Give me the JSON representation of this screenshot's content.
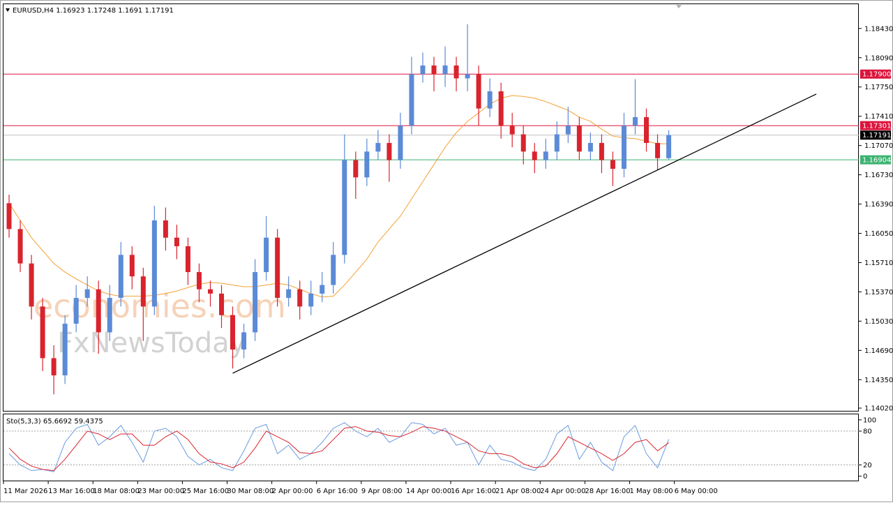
{
  "chart_data": {
    "type": "candlestick",
    "title": "EURUSD,H4",
    "xlim": [
      0,
      76.5
    ],
    "ylim": [
      1.1398,
      1.1872
    ],
    "yticks": [
      {
        "value": 1.1843,
        "label": "1.18430"
      },
      {
        "value": 1.1809,
        "label": "1.18090"
      },
      {
        "value": 1.1775,
        "label": "1.17750"
      },
      {
        "value": 1.1741,
        "label": "1.17410"
      },
      {
        "value": 1.1707,
        "label": "1.17070"
      },
      {
        "value": 1.1673,
        "label": "1.16730"
      },
      {
        "value": 1.1639,
        "label": "1.16390"
      },
      {
        "value": 1.1605,
        "label": "1.16050"
      },
      {
        "value": 1.1571,
        "label": "1.15710"
      },
      {
        "value": 1.1537,
        "label": "1.15370"
      },
      {
        "value": 1.1503,
        "label": "1.15030"
      },
      {
        "value": 1.1469,
        "label": "1.14690"
      },
      {
        "value": 1.1435,
        "label": "1.14350"
      },
      {
        "value": 1.1402,
        "label": "1.14020"
      }
    ],
    "xticks": [
      {
        "value": 0,
        "label": "11 Mar 2026"
      },
      {
        "value": 4,
        "label": "13 Mar 16:00"
      },
      {
        "value": 8,
        "label": "18 Mar 08:00"
      },
      {
        "value": 12,
        "label": "23 Mar 00:00"
      },
      {
        "value": 16,
        "label": "25 Mar 16:00"
      },
      {
        "value": 20,
        "label": "30 Mar 08:00"
      },
      {
        "value": 24,
        "label": "2 Apr 00:00"
      },
      {
        "value": 28,
        "label": "6 Apr 16:00"
      },
      {
        "value": 32,
        "label": "9 Apr 08:00"
      },
      {
        "value": 36,
        "label": "14 Apr 00:00"
      },
      {
        "value": 40,
        "label": "16 Apr 16:00"
      },
      {
        "value": 44,
        "label": "21 Apr 08:00"
      },
      {
        "value": 48,
        "label": "24 Apr 00:00"
      },
      {
        "value": 52,
        "label": "28 Apr 16:00"
      },
      {
        "value": 56,
        "label": "1 May 08:00"
      },
      {
        "value": 60,
        "label": "6 May 00:00"
      }
    ],
    "up_color": "#5b8ad6",
    "down_color": "#d9232d",
    "open": [
      1.164,
      1.161,
      1.157,
      1.152,
      1.146,
      1.144,
      1.15,
      1.153,
      1.154,
      1.149,
      1.153,
      1.158,
      1.1555,
      1.152,
      1.162,
      1.16,
      1.159,
      1.156,
      1.154,
      1.1535,
      1.151,
      1.147,
      1.149,
      1.156,
      1.16,
      1.153,
      1.154,
      1.152,
      1.1535,
      1.1545,
      1.158,
      1.169,
      1.167,
      1.17,
      1.171,
      1.169,
      1.173,
      1.179,
      1.18,
      1.179,
      1.18,
      1.1785,
      1.179,
      1.175,
      1.177,
      1.173,
      1.172,
      1.17,
      1.169,
      1.17,
      1.172,
      1.173,
      1.17,
      1.171,
      1.169,
      1.168,
      1.173,
      1.174,
      1.171,
      1.16923
    ],
    "high": [
      1.165,
      1.162,
      1.158,
      1.153,
      1.1475,
      1.151,
      1.1545,
      1.1555,
      1.155,
      1.1545,
      1.1595,
      1.159,
      1.1565,
      1.1637,
      1.1635,
      1.1615,
      1.16,
      1.157,
      1.155,
      1.1545,
      1.152,
      1.15,
      1.1575,
      1.1625,
      1.161,
      1.1555,
      1.155,
      1.155,
      1.156,
      1.1595,
      1.172,
      1.17,
      1.1715,
      1.1725,
      1.172,
      1.1745,
      1.181,
      1.1815,
      1.181,
      1.1822,
      1.181,
      1.1848,
      1.18,
      1.1785,
      1.178,
      1.1745,
      1.173,
      1.171,
      1.1715,
      1.1735,
      1.1752,
      1.174,
      1.1722,
      1.172,
      1.17,
      1.1745,
      1.1784,
      1.175,
      1.172,
      1.17248
    ],
    "low": [
      1.16,
      1.156,
      1.1505,
      1.1445,
      1.1418,
      1.143,
      1.149,
      1.152,
      1.1465,
      1.148,
      1.152,
      1.154,
      1.148,
      1.151,
      1.1585,
      1.1575,
      1.1545,
      1.1525,
      1.152,
      1.1495,
      1.1448,
      1.146,
      1.148,
      1.155,
      1.152,
      1.152,
      1.1505,
      1.151,
      1.1525,
      1.1535,
      1.157,
      1.1645,
      1.166,
      1.169,
      1.1665,
      1.168,
      1.172,
      1.178,
      1.177,
      1.1775,
      1.177,
      1.177,
      1.173,
      1.174,
      1.1715,
      1.1705,
      1.1685,
      1.1675,
      1.168,
      1.169,
      1.171,
      1.169,
      1.169,
      1.1675,
      1.166,
      1.167,
      1.172,
      1.17,
      1.1678,
      1.1691
    ],
    "close": [
      1.161,
      1.157,
      1.152,
      1.146,
      1.144,
      1.15,
      1.153,
      1.154,
      1.149,
      1.153,
      1.158,
      1.1555,
      1.152,
      1.162,
      1.16,
      1.159,
      1.156,
      1.154,
      1.1535,
      1.151,
      1.147,
      1.149,
      1.156,
      1.16,
      1.153,
      1.154,
      1.152,
      1.1535,
      1.1545,
      1.158,
      1.169,
      1.167,
      1.17,
      1.171,
      1.169,
      1.173,
      1.179,
      1.18,
      1.179,
      1.18,
      1.1785,
      1.179,
      1.175,
      1.177,
      1.173,
      1.172,
      1.17,
      1.169,
      1.17,
      1.172,
      1.173,
      1.17,
      1.171,
      1.169,
      1.168,
      1.173,
      1.174,
      1.171,
      1.16923,
      1.17191
    ],
    "ma": {
      "color": "#f5a030",
      "values": [
        1.164,
        1.162,
        1.16,
        1.1585,
        1.157,
        1.156,
        1.1552,
        1.1545,
        1.1538,
        1.1534,
        1.1532,
        1.1532,
        1.1532,
        1.1533,
        1.1535,
        1.1538,
        1.1542,
        1.1546,
        1.1548,
        1.1547,
        1.1545,
        1.1543,
        1.1543,
        1.1545,
        1.1547,
        1.1545,
        1.154,
        1.1535,
        1.1531,
        1.1532,
        1.1545,
        1.156,
        1.1575,
        1.1595,
        1.161,
        1.1625,
        1.1645,
        1.1665,
        1.1685,
        1.1705,
        1.1722,
        1.1735,
        1.1745,
        1.1755,
        1.1762,
        1.1765,
        1.1764,
        1.1762,
        1.1758,
        1.1753,
        1.1748,
        1.174,
        1.1735,
        1.1726,
        1.1718,
        1.1716,
        1.1715,
        1.1712,
        1.1709,
        1.1709
      ]
    },
    "levels": [
      {
        "value": 1.179,
        "label": "1.17900",
        "color": "#dc143c"
      },
      {
        "value": 1.17301,
        "color": "#dc143c"
      },
      {
        "value": 1.17191,
        "color": "#c0c0c0",
        "label_color": "#000000"
      },
      {
        "value": 1.16904,
        "color": "#3cb371"
      }
    ],
    "trendline": {
      "color": "#000000",
      "x": [
        20.5,
        72.7
      ],
      "y": [
        1.14425,
        1.17668
      ]
    },
    "watermark": [
      "economies.com",
      "FxNewsToday"
    ],
    "oscillator": {
      "title": "Sto(5,3,3)",
      "ylim": [
        -9,
        111
      ],
      "yticks": [
        100,
        80,
        20,
        0
      ],
      "levels": [
        80,
        20
      ],
      "main": {
        "color": "#6a9be0",
        "values": [
          40,
          20,
          10,
          12,
          8,
          60,
          85,
          92,
          55,
          70,
          90,
          60,
          25,
          80,
          85,
          70,
          35,
          20,
          30,
          15,
          10,
          45,
          85,
          92,
          40,
          55,
          30,
          40,
          60,
          85,
          95,
          80,
          70,
          85,
          60,
          70,
          95,
          92,
          75,
          85,
          55,
          60,
          20,
          55,
          30,
          25,
          15,
          10,
          30,
          75,
          90,
          30,
          60,
          25,
          10,
          70,
          90,
          40,
          15,
          65.6692
        ]
      },
      "signal": {
        "color": "#d9232d",
        "values": [
          50,
          30,
          18,
          12,
          10,
          30,
          55,
          80,
          75,
          65,
          75,
          75,
          55,
          55,
          70,
          80,
          65,
          40,
          25,
          22,
          15,
          25,
          50,
          80,
          70,
          60,
          42,
          40,
          45,
          65,
          85,
          88,
          80,
          78,
          72,
          70,
          78,
          88,
          85,
          80,
          70,
          60,
          45,
          40,
          40,
          35,
          22,
          15,
          18,
          40,
          70,
          60,
          50,
          40,
          28,
          40,
          60,
          65,
          45,
          59.4375
        ]
      }
    }
  }
}
